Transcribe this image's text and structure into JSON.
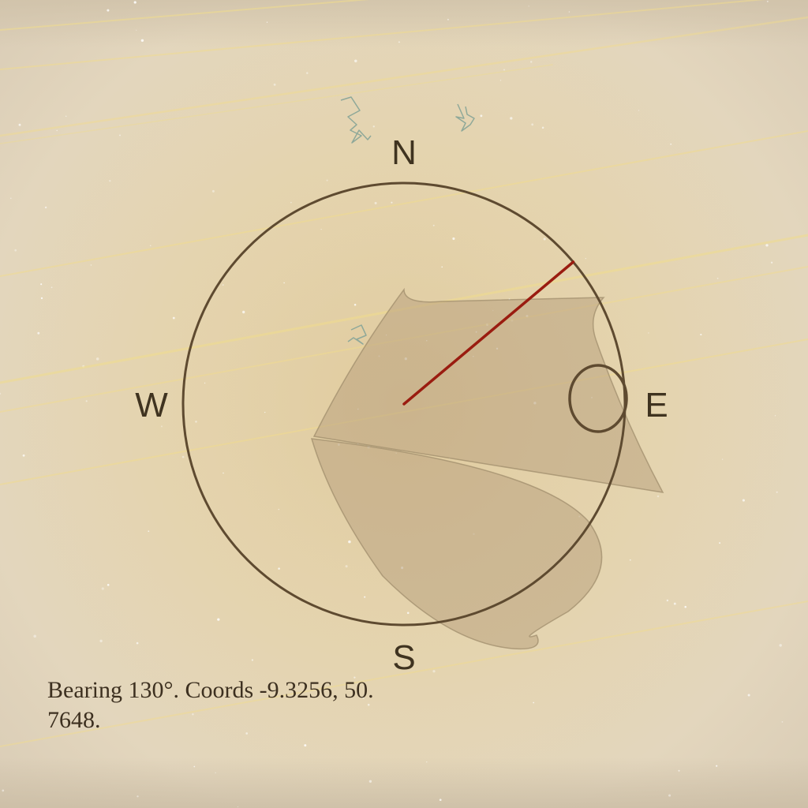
{
  "compass": {
    "north_label": "N",
    "south_label": "S",
    "east_label": "E",
    "west_label": "W",
    "bearing_deg": 130
  },
  "status": {
    "text": "Bearing 130°. Coords -9.3256, 50.7648."
  },
  "colors": {
    "ring": "#5e4a30",
    "needle": "#9a1c10",
    "landmass": "#b9a27f",
    "light_streak": "#f1dc8c",
    "glyph": "#8fa899",
    "label": "#3f3320"
  },
  "icons": {
    "glyph_a": "ice-crystal-icon",
    "glyph_b": "ice-crystal-icon",
    "glyph_c": "ice-crystal-icon"
  }
}
